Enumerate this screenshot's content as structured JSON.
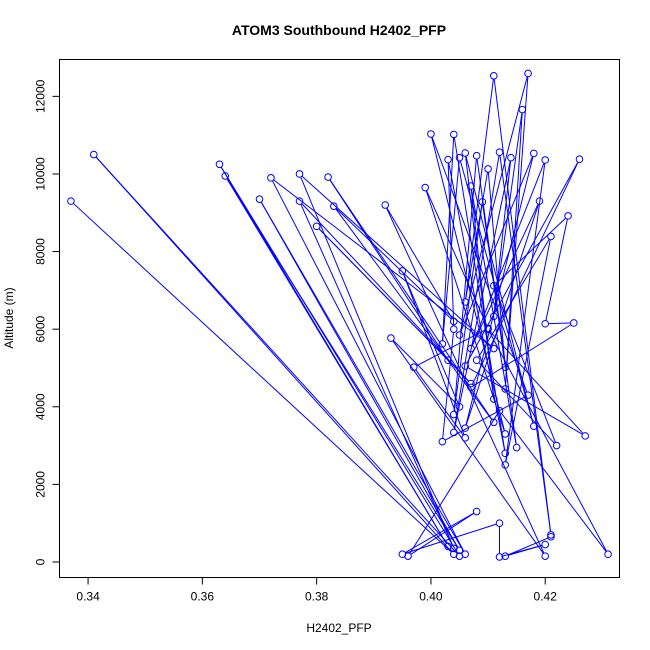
{
  "chart_data": {
    "type": "scatter",
    "title": "ATOM3 Southbound H2402_PFP",
    "xlabel": "H2402_PFP",
    "ylabel": "Altitude (m)",
    "xlim": [
      0.335,
      0.433
    ],
    "ylim": [
      -400,
      12950
    ],
    "xticks": [
      0.34,
      0.36,
      0.38,
      0.4,
      0.42
    ],
    "xtick_labels": [
      "0.34",
      "0.36",
      "0.38",
      "0.40",
      "0.42"
    ],
    "yticks": [
      0,
      2000,
      4000,
      6000,
      8000,
      10000,
      12000
    ],
    "ytick_labels": [
      "0",
      "2000",
      "4000",
      "6000",
      "8000",
      "10000",
      "12000"
    ],
    "grid": false,
    "connected": true,
    "marker": "open-circle",
    "series_color": "#0000ff",
    "series": [
      {
        "x": [
          0.337,
          0.404,
          0.341,
          0.405,
          0.363,
          0.403,
          0.364,
          0.405,
          0.37,
          0.406,
          0.372,
          0.411,
          0.377,
          0.404,
          0.377,
          0.407,
          0.38,
          0.403,
          0.382,
          0.411,
          0.383,
          0.404,
          0.392,
          0.42,
          0.393,
          0.405,
          0.395,
          0.406,
          0.397,
          0.41,
          0.399,
          0.413,
          0.4,
          0.417,
          0.402,
          0.404,
          0.403,
          0.413,
          0.404,
          0.402,
          0.405,
          0.418,
          0.406,
          0.411,
          0.407,
          0.415,
          0.408,
          0.404,
          0.409,
          0.413,
          0.41,
          0.406,
          0.411,
          0.421,
          0.412,
          0.404,
          0.414,
          0.411,
          0.416,
          0.413,
          0.417,
          0.405,
          0.418,
          0.406,
          0.419,
          0.407,
          0.42,
          0.413,
          0.421,
          0.408,
          0.422,
          0.411,
          0.424,
          0.42,
          0.425,
          0.407,
          0.426,
          0.406,
          0.427,
          0.41,
          0.431,
          0.412,
          0.396,
          0.408,
          0.395,
          0.412,
          0.412,
          0.42,
          0.413,
          0.421
        ],
        "y": [
          9300,
          200,
          10500,
          150,
          10250,
          400,
          9950,
          300,
          9350,
          200,
          9900,
          5500,
          10000,
          350,
          9300,
          4600,
          8650,
          5200,
          9920,
          3600,
          9170,
          6200,
          9200,
          150,
          5770,
          4000,
          7500,
          3200,
          5020,
          6020,
          9650,
          3300,
          11030,
          4300,
          3100,
          6000,
          10370,
          2800,
          11020,
          5620,
          10420,
          3500,
          10540,
          4200,
          9690,
          2950,
          10470,
          3800,
          9280,
          5020,
          10130,
          6700,
          12530,
          700,
          10560,
          3340,
          10420,
          6330,
          11660,
          4460,
          12590,
          5850,
          10530,
          3450,
          9300,
          5500,
          10360,
          2500,
          8390,
          5200,
          3000,
          7120,
          8920,
          6140,
          6160,
          4500,
          10380,
          5050,
          3250,
          6000,
          200,
          3900,
          150,
          1300,
          200,
          1000,
          130,
          450,
          150,
          650
        ]
      }
    ]
  }
}
